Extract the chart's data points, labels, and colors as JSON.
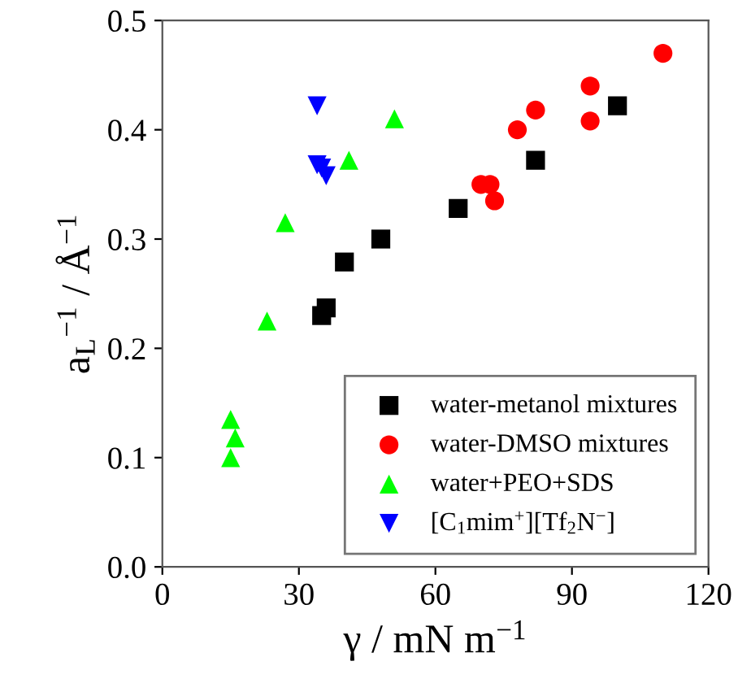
{
  "chart_data": {
    "type": "scatter",
    "xlabel": "γ / mN m$^{−1}$",
    "ylabel": "a$_{L}$$^{−1}$ / Å$^{−1}$",
    "xlim": [
      0,
      120
    ],
    "xticks": [
      0,
      30,
      60,
      90,
      120
    ],
    "ylim": [
      0.0,
      0.5
    ],
    "yticks": [
      {
        "value": 0.0,
        "label": "0.0"
      },
      {
        "value": 0.1,
        "label": "0.1"
      },
      {
        "value": 0.2,
        "label": "0.2"
      },
      {
        "value": 0.3,
        "label": "0.3"
      },
      {
        "value": 0.4,
        "label": "0.4"
      },
      {
        "value": 0.5,
        "label": "0.5"
      }
    ],
    "grid": false,
    "legend": "bottom right",
    "series": [
      {
        "name": "water-metanol mixtures",
        "color": "#000000",
        "marker": "square",
        "x": [
          35,
          36,
          40,
          48,
          65,
          82,
          100
        ],
        "values": [
          0.23,
          0.237,
          0.279,
          0.3,
          0.328,
          0.372,
          0.422
        ]
      },
      {
        "name": "water-DMSO mixtures",
        "color": "#ff0000",
        "marker": "circle",
        "x": [
          70,
          72,
          73,
          78,
          82,
          94,
          94,
          110
        ],
        "values": [
          0.35,
          0.35,
          0.335,
          0.4,
          0.418,
          0.44,
          0.408,
          0.47
        ]
      },
      {
        "name": "water+PEO+SDS",
        "color": "#00ff00",
        "marker": "triangle",
        "x": [
          15,
          16,
          15,
          23,
          27,
          41,
          51
        ],
        "values": [
          0.135,
          0.118,
          0.1,
          0.225,
          0.315,
          0.372,
          0.41
        ]
      },
      {
        "name": "[C$_{1}$mim$^{+}$][Tf$_{2}$N$^{−}$]",
        "color": "#0000ff",
        "marker": "triangle_down",
        "x": [
          34,
          34,
          35,
          36
        ],
        "values": [
          0.422,
          0.368,
          0.365,
          0.358
        ]
      }
    ]
  }
}
